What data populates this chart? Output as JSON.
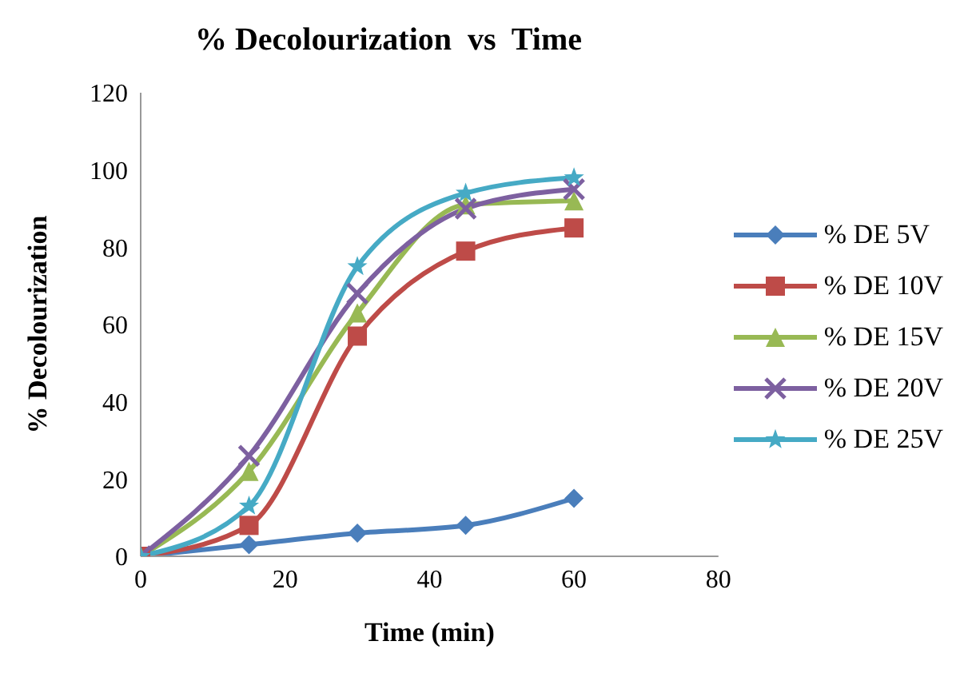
{
  "chart_data": {
    "type": "line",
    "title": "% Decolourization  vs  Time",
    "xlabel": "Time (min)",
    "ylabel": "% Decolourization",
    "x": [
      0,
      15,
      30,
      45,
      60
    ],
    "xlim": [
      0,
      80
    ],
    "xticks": [
      0,
      20,
      40,
      60,
      80
    ],
    "ylim": [
      0,
      120
    ],
    "yticks": [
      0,
      20,
      40,
      60,
      80,
      100,
      120
    ],
    "grid": false,
    "legend": "right",
    "series": [
      {
        "name": "% DE 5V",
        "color": "#4a7ebb",
        "marker": "diamond",
        "values": [
          0,
          3,
          6,
          8,
          15
        ]
      },
      {
        "name": "% DE 10V",
        "color": "#be4b48",
        "marker": "square",
        "values": [
          0,
          8,
          57,
          79,
          85
        ]
      },
      {
        "name": "% DE 15V",
        "color": "#98b954",
        "marker": "triangle",
        "values": [
          0,
          22,
          63,
          91,
          92
        ]
      },
      {
        "name": "% DE 20V",
        "color": "#7d60a0",
        "marker": "cross",
        "values": [
          0,
          26,
          68,
          90,
          95
        ]
      },
      {
        "name": "% DE 25V",
        "color": "#46aac5",
        "marker": "star",
        "values": [
          0,
          13,
          75,
          94,
          98
        ]
      }
    ]
  }
}
